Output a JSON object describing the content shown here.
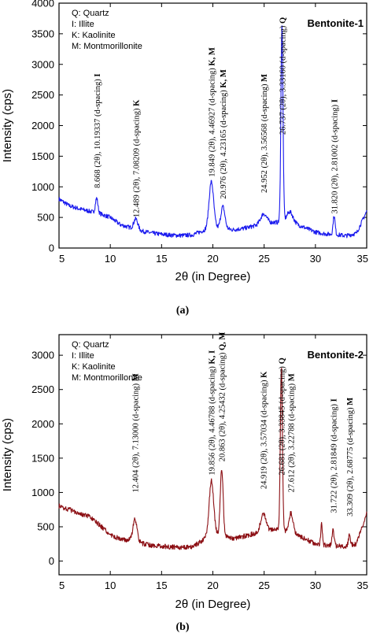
{
  "chart_data": [
    {
      "type": "line",
      "panel_label": "(a)",
      "sample_label": "Bentonite-1",
      "xlabel": "2θ (in Degree)",
      "ylabel": "Intensity (cps)",
      "xlim": [
        5,
        35
      ],
      "ylim": [
        0,
        4000
      ],
      "xticks": [
        5,
        10,
        15,
        20,
        25,
        30,
        35
      ],
      "xtick_labels": [
        "5",
        "10",
        "15",
        "20",
        "25",
        "30",
        "35"
      ],
      "yticks": [
        0,
        500,
        1000,
        1500,
        2000,
        2500,
        3000,
        3500,
        4000
      ],
      "legend": [
        "Q: Quartz",
        "I: Illite",
        "K: Kaolinite",
        "M: Montmorillonite"
      ],
      "legend_position": "top-left",
      "line_color": "#1a1aee",
      "baseline": [
        [
          5,
          800
        ],
        [
          6,
          690
        ],
        [
          7,
          640
        ],
        [
          8,
          600
        ],
        [
          9,
          560
        ],
        [
          10,
          500
        ],
        [
          11,
          380
        ],
        [
          12,
          330
        ],
        [
          13,
          280
        ],
        [
          14,
          245
        ],
        [
          15,
          225
        ],
        [
          16,
          210
        ],
        [
          17,
          205
        ],
        [
          18,
          215
        ],
        [
          19,
          280
        ],
        [
          20,
          330
        ],
        [
          22,
          300
        ],
        [
          23,
          320
        ],
        [
          24,
          360
        ],
        [
          25,
          400
        ],
        [
          26,
          420
        ],
        [
          27,
          420
        ],
        [
          28,
          400
        ],
        [
          29,
          330
        ],
        [
          30,
          260
        ],
        [
          31,
          230
        ],
        [
          32,
          220
        ],
        [
          33,
          200
        ],
        [
          34,
          240
        ],
        [
          35,
          600
        ]
      ],
      "peaks": [
        {
          "x": 8.668,
          "h": 240,
          "w": 0.12
        },
        {
          "x": 12.489,
          "h": 170,
          "w": 0.2
        },
        {
          "x": 19.849,
          "h": 760,
          "w": 0.22
        },
        {
          "x": 20.976,
          "h": 360,
          "w": 0.2
        },
        {
          "x": 24.952,
          "h": 160,
          "w": 0.3
        },
        {
          "x": 26.737,
          "h": 3220,
          "w": 0.1
        },
        {
          "x": 27.5,
          "h": 180,
          "w": 0.3
        },
        {
          "x": 31.82,
          "h": 300,
          "w": 0.1
        }
      ],
      "annotations": [
        {
          "x": 8.668,
          "y_start": 980,
          "text": "8.668 (2θ), 10.19337 (d-spacing)",
          "phase": "I"
        },
        {
          "x": 12.489,
          "y_start": 500,
          "text": "12.489 (2θ), 7.08209 (d-spacing)",
          "phase": "K"
        },
        {
          "x": 19.849,
          "y_start": 1160,
          "text": "19.849 (2θ), 4.46927 (d-spacing)",
          "phase": "K, M"
        },
        {
          "x": 20.976,
          "y_start": 800,
          "text": "20.976 (2θ), 4.23165 (d-spacing)",
          "phase": "K, M"
        },
        {
          "x": 24.952,
          "y_start": 900,
          "text": "24.952 (2θ), 3.56568 (d-spacing)",
          "phase": "M"
        },
        {
          "x": 26.737,
          "y_start": 1850,
          "text": "26.737 (2θ), 3.33160 (d-spacing)",
          "phase": "Q"
        },
        {
          "x": 31.82,
          "y_start": 560,
          "text": "31.820 (2θ), 2.81002 (d-spacing)",
          "phase": "I"
        }
      ]
    },
    {
      "type": "line",
      "panel_label": "(b)",
      "sample_label": "Bentonite-2",
      "xlabel": "2θ (in Degree)",
      "ylabel": "Intensity (cps)",
      "xlim": [
        5,
        35
      ],
      "ylim": [
        -200,
        3300
      ],
      "xticks": [
        5,
        10,
        15,
        20,
        25,
        30,
        35
      ],
      "xtick_labels": [
        "5",
        "10",
        "15",
        "20",
        "25",
        "30",
        "35"
      ],
      "yticks": [
        0,
        500,
        1000,
        1500,
        2000,
        2500,
        3000
      ],
      "legend": [
        "Q: Quartz",
        "I: Illite",
        "K: Kaolinite",
        "M: Montmorillonite"
      ],
      "legend_position": "top-left",
      "line_color": "#8b0d12",
      "baseline": [
        [
          5,
          800
        ],
        [
          6,
          750
        ],
        [
          7,
          700
        ],
        [
          8,
          640
        ],
        [
          9,
          520
        ],
        [
          10,
          380
        ],
        [
          11,
          320
        ],
        [
          12,
          300
        ],
        [
          13,
          260
        ],
        [
          14,
          230
        ],
        [
          15,
          215
        ],
        [
          16,
          205
        ],
        [
          17,
          200
        ],
        [
          18,
          210
        ],
        [
          19,
          300
        ],
        [
          20,
          400
        ],
        [
          21,
          360
        ],
        [
          22,
          330
        ],
        [
          23,
          360
        ],
        [
          24,
          400
        ],
        [
          25,
          440
        ],
        [
          26,
          460
        ],
        [
          27,
          440
        ],
        [
          28,
          400
        ],
        [
          29,
          320
        ],
        [
          30,
          250
        ],
        [
          31,
          230
        ],
        [
          32,
          220
        ],
        [
          33,
          210
        ],
        [
          34,
          250
        ],
        [
          35,
          700
        ]
      ],
      "peaks": [
        {
          "x": 12.404,
          "h": 320,
          "w": 0.2
        },
        {
          "x": 19.856,
          "h": 780,
          "w": 0.22
        },
        {
          "x": 20.863,
          "h": 980,
          "w": 0.14
        },
        {
          "x": 24.919,
          "h": 260,
          "w": 0.25
        },
        {
          "x": 26.681,
          "h": 2380,
          "w": 0.1
        },
        {
          "x": 27.612,
          "h": 280,
          "w": 0.2
        },
        {
          "x": 30.6,
          "h": 300,
          "w": 0.08
        },
        {
          "x": 31.722,
          "h": 230,
          "w": 0.1
        },
        {
          "x": 33.309,
          "h": 150,
          "w": 0.1
        }
      ],
      "annotations": [
        {
          "x": 12.404,
          "y_start": 1000,
          "text": "12.404 (2θ), 7.13000 (d-spacing)",
          "phase": "M"
        },
        {
          "x": 19.856,
          "y_start": 1250,
          "text": "19.856 (2θ), 4.46788 (d-spacing)",
          "phase": "K, I"
        },
        {
          "x": 20.863,
          "y_start": 1450,
          "text": "20.863 (2θ), 4.25432 (d-spacing)",
          "phase": "Q, M"
        },
        {
          "x": 24.919,
          "y_start": 1050,
          "text": "24.919 (2θ), 3.57034 (d-spacing)",
          "phase": "K"
        },
        {
          "x": 26.681,
          "y_start": 1250,
          "text": "26.681 (2θ), 3.33845 (d-spacing)",
          "phase": "Q"
        },
        {
          "x": 27.612,
          "y_start": 1000,
          "text": "27.612 (2θ), 3.22788 (d-spacing)",
          "phase": "M"
        },
        {
          "x": 31.722,
          "y_start": 700,
          "text": "31.722 (2θ), 2.81849 (d-spacing)",
          "phase": "I"
        },
        {
          "x": 33.309,
          "y_start": 650,
          "text": "33.309 (2θ), 2.68775 (d-spacing)",
          "phase": "M"
        }
      ]
    }
  ]
}
